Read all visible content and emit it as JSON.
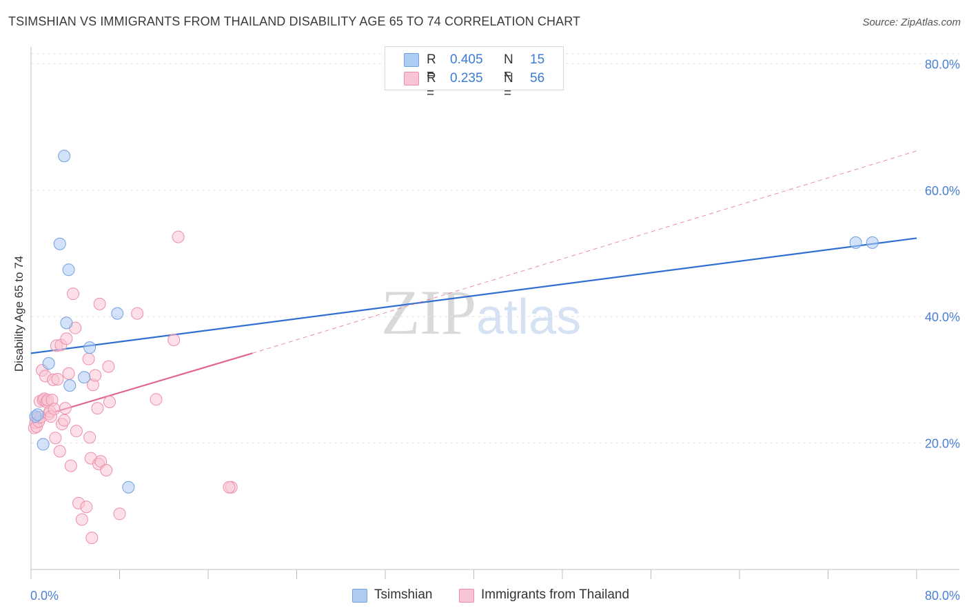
{
  "title": "TSIMSHIAN VS IMMIGRANTS FROM THAILAND DISABILITY AGE 65 TO 74 CORRELATION CHART",
  "source": "Source: ZipAtlas.com",
  "watermark": {
    "zip": "ZIP",
    "atlas": "atlas"
  },
  "legend": {
    "r_label": "R =",
    "n_label": "N =",
    "rows": [
      {
        "r": "0.405",
        "n": "15",
        "color": "#aecbf2",
        "border": "#6f9fe0"
      },
      {
        "r": "0.235",
        "n": "56",
        "color": "#f9c4d3",
        "border": "#ec8eab"
      }
    ]
  },
  "bottom_legend": [
    "Tsimshian",
    "Immigrants from Thailand"
  ],
  "colors": {
    "blue_point": "#aecbf2",
    "blue_stroke": "#6f9fe0",
    "blue_line": "#2f6fd0",
    "pink_point": "#f9c4d3",
    "pink_stroke": "#ec8eab",
    "pink_line": "#e0658f"
  },
  "chart_data": {
    "type": "scatter",
    "title": "TSIMSHIAN VS IMMIGRANTS FROM THAILAND DISABILITY AGE 65 TO 74 CORRELATION CHART",
    "xlabel": "",
    "ylabel": "Disability Age 65 to 74",
    "xlim": [
      0,
      80
    ],
    "ylim": [
      0,
      82
    ],
    "x_tick_labels": [
      "0.0%",
      "80.0%"
    ],
    "y_ticks": [
      20,
      40,
      60,
      80
    ],
    "y_tick_labels": [
      "20.0%",
      "40.0%",
      "60.0%",
      "80.0%"
    ],
    "grid": true,
    "legend_position": "top-center",
    "series": [
      {
        "name": "Tsimshian",
        "x": [
          0.4,
          0.6,
          1.1,
          1.6,
          2.6,
          3.0,
          3.2,
          3.4,
          3.5,
          4.8,
          5.3,
          7.8,
          8.8,
          74.5,
          76.0
        ],
        "y": [
          24.2,
          24.5,
          19.8,
          32.6,
          51.5,
          65.4,
          39.0,
          47.4,
          29.1,
          30.4,
          35.1,
          40.5,
          13.0,
          51.7,
          51.7
        ]
      },
      {
        "name": "Immigrants from Thailand",
        "x": [
          0.3,
          0.4,
          0.5,
          0.6,
          0.7,
          0.8,
          0.9,
          1.0,
          1.1,
          1.2,
          1.3,
          1.4,
          1.5,
          1.6,
          1.7,
          1.8,
          1.9,
          2.0,
          2.1,
          2.2,
          2.3,
          2.4,
          2.6,
          2.7,
          2.8,
          3.0,
          3.1,
          3.2,
          3.4,
          3.6,
          3.8,
          4.0,
          4.1,
          4.3,
          4.6,
          5.0,
          5.2,
          5.3,
          5.4,
          5.5,
          5.6,
          5.8,
          6.0,
          6.1,
          6.2,
          6.3,
          6.8,
          7.0,
          7.1,
          8.0,
          9.6,
          11.3,
          12.9,
          13.3,
          18.1,
          17.9
        ],
        "y": [
          22.4,
          23.2,
          22.6,
          24.0,
          23.4,
          26.6,
          24.1,
          31.5,
          26.8,
          27.0,
          30.6,
          26.5,
          26.8,
          24.6,
          25.0,
          24.2,
          26.8,
          30.0,
          25.4,
          20.8,
          35.4,
          30.1,
          18.7,
          35.5,
          23.0,
          23.6,
          25.5,
          36.5,
          31.0,
          16.4,
          43.6,
          38.2,
          21.9,
          10.5,
          7.9,
          9.9,
          33.3,
          20.9,
          17.6,
          5.0,
          29.2,
          30.7,
          25.5,
          16.7,
          42.0,
          17.1,
          15.7,
          32.1,
          26.5,
          8.8,
          40.5,
          26.9,
          36.3,
          52.6,
          13.0,
          13.0
        ]
      }
    ],
    "trend_lines": [
      {
        "series": "Tsimshian",
        "x": [
          0,
          80
        ],
        "y": [
          34.2,
          52.4
        ]
      },
      {
        "series": "Immigrants from Thailand",
        "x": [
          0,
          20
        ],
        "y": [
          23.8,
          34.2
        ],
        "dashed_extension_to": [
          80,
          66.2
        ]
      }
    ]
  }
}
